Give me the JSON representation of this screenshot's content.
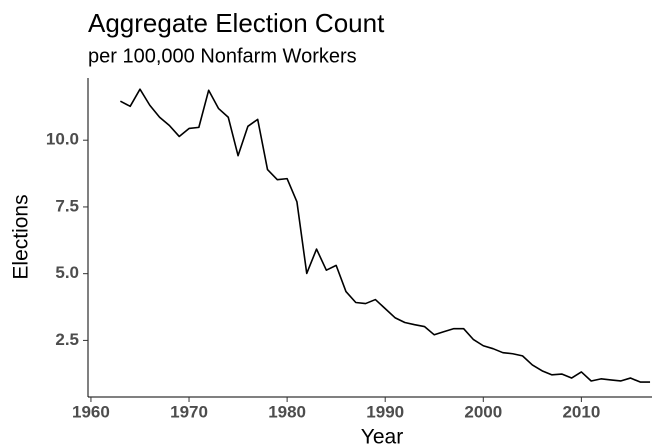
{
  "chart_data": {
    "type": "line",
    "title": "Aggregate Election Count",
    "subtitle": "per 100,000 Nonfarm Workers",
    "x_label": "Year",
    "y_label": "Elections",
    "color": "#000000",
    "grid": false,
    "x": [
      1963,
      1964,
      1965,
      1966,
      1967,
      1968,
      1969,
      1970,
      1971,
      1972,
      1973,
      1974,
      1975,
      1976,
      1977,
      1978,
      1979,
      1980,
      1981,
      1982,
      1983,
      1984,
      1985,
      1986,
      1987,
      1988,
      1989,
      1990,
      1991,
      1992,
      1993,
      1994,
      1995,
      1996,
      1997,
      1998,
      1999,
      2000,
      2001,
      2002,
      2003,
      2004,
      2005,
      2006,
      2007,
      2008,
      2009,
      2010,
      2011,
      2012,
      2013,
      2014,
      2015,
      2016,
      2017
    ],
    "values": [
      11.46,
      11.27,
      11.91,
      11.31,
      10.86,
      10.55,
      10.14,
      10.44,
      10.48,
      11.87,
      11.19,
      10.86,
      9.42,
      10.52,
      10.78,
      8.9,
      8.52,
      8.56,
      7.69,
      5.01,
      5.92,
      5.13,
      5.31,
      4.33,
      3.92,
      3.88,
      4.03,
      3.69,
      3.35,
      3.17,
      3.09,
      3.02,
      2.71,
      2.83,
      2.94,
      2.94,
      2.53,
      2.3,
      2.19,
      2.04,
      2.0,
      1.92,
      1.58,
      1.36,
      1.21,
      1.24,
      1.09,
      1.32,
      0.98,
      1.06,
      1.02,
      0.98,
      1.09,
      0.94,
      0.94
    ],
    "xlim": [
      1959.7,
      2017.2
    ],
    "xticks": [
      1960,
      1970,
      1980,
      1990,
      2000,
      2010
    ],
    "ylim": [
      0.38,
      12.33
    ],
    "yticks": [
      {
        "value": 2.5,
        "label": "2.5"
      },
      {
        "value": 5,
        "label": "5.0"
      },
      {
        "value": 7.5,
        "label": "7.5"
      },
      {
        "value": 10,
        "label": "10.0"
      }
    ]
  }
}
